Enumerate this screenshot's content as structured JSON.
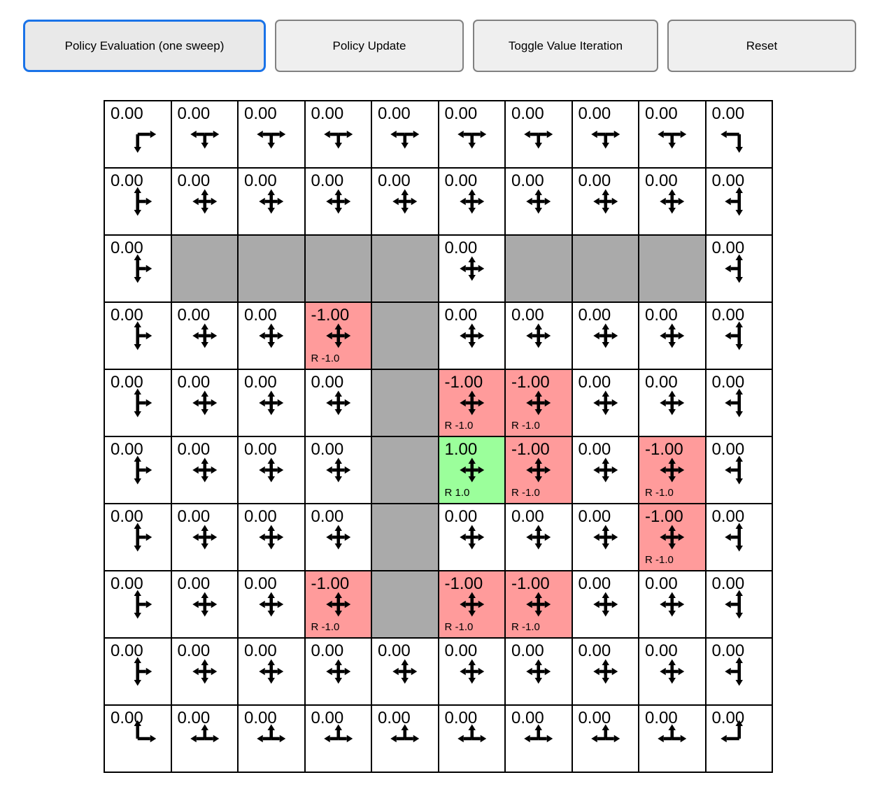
{
  "toolbar": {
    "buttons": [
      {
        "label": "Policy Evaluation (one sweep)",
        "focused": true
      },
      {
        "label": "Policy Update",
        "focused": false
      },
      {
        "label": "Toggle Value Iteration",
        "focused": false
      },
      {
        "label": "Reset",
        "focused": false
      }
    ]
  },
  "colors": {
    "focus_ring": "#1a73e8",
    "button_bg": "#efefef",
    "button_border": "#818181",
    "wall": "#aaaaaa",
    "negative_cell": "#ff9b9b",
    "positive_cell": "#9bff9b",
    "grid_line": "#000000"
  },
  "grid": {
    "rows": 10,
    "cols": 10,
    "cells": [
      [
        {
          "v": "0.00",
          "d": "DR"
        },
        {
          "v": "0.00",
          "d": "LRD"
        },
        {
          "v": "0.00",
          "d": "LRD"
        },
        {
          "v": "0.00",
          "d": "LRD"
        },
        {
          "v": "0.00",
          "d": "LRD"
        },
        {
          "v": "0.00",
          "d": "LRD"
        },
        {
          "v": "0.00",
          "d": "LRD"
        },
        {
          "v": "0.00",
          "d": "LRD"
        },
        {
          "v": "0.00",
          "d": "LRD"
        },
        {
          "v": "0.00",
          "d": "LD"
        }
      ],
      [
        {
          "v": "0.00",
          "d": "UDR"
        },
        {
          "v": "0.00",
          "d": "UDLR"
        },
        {
          "v": "0.00",
          "d": "UDLR"
        },
        {
          "v": "0.00",
          "d": "UDLR"
        },
        {
          "v": "0.00",
          "d": "UDLR"
        },
        {
          "v": "0.00",
          "d": "UDLR"
        },
        {
          "v": "0.00",
          "d": "UDLR"
        },
        {
          "v": "0.00",
          "d": "UDLR"
        },
        {
          "v": "0.00",
          "d": "UDLR"
        },
        {
          "v": "0.00",
          "d": "UDL"
        }
      ],
      [
        {
          "v": "0.00",
          "d": "UDR"
        },
        {
          "wall": true
        },
        {
          "wall": true
        },
        {
          "wall": true
        },
        {
          "wall": true
        },
        {
          "v": "0.00",
          "d": "UDLR"
        },
        {
          "wall": true
        },
        {
          "wall": true
        },
        {
          "wall": true
        },
        {
          "v": "0.00",
          "d": "UDL"
        }
      ],
      [
        {
          "v": "0.00",
          "d": "UDR"
        },
        {
          "v": "0.00",
          "d": "UDLR"
        },
        {
          "v": "0.00",
          "d": "UDLR"
        },
        {
          "v": "-1.00",
          "d": "UDLR",
          "bg": "red",
          "r": "R -1.0"
        },
        {
          "wall": true
        },
        {
          "v": "0.00",
          "d": "UDLR"
        },
        {
          "v": "0.00",
          "d": "UDLR"
        },
        {
          "v": "0.00",
          "d": "UDLR"
        },
        {
          "v": "0.00",
          "d": "UDLR"
        },
        {
          "v": "0.00",
          "d": "UDL"
        }
      ],
      [
        {
          "v": "0.00",
          "d": "UDR"
        },
        {
          "v": "0.00",
          "d": "UDLR"
        },
        {
          "v": "0.00",
          "d": "UDLR"
        },
        {
          "v": "0.00",
          "d": "UDLR"
        },
        {
          "wall": true
        },
        {
          "v": "-1.00",
          "d": "UDLR",
          "bg": "red",
          "r": "R -1.0"
        },
        {
          "v": "-1.00",
          "d": "UDLR",
          "bg": "red",
          "r": "R -1.0"
        },
        {
          "v": "0.00",
          "d": "UDLR"
        },
        {
          "v": "0.00",
          "d": "UDLR"
        },
        {
          "v": "0.00",
          "d": "UDL"
        }
      ],
      [
        {
          "v": "0.00",
          "d": "UDR"
        },
        {
          "v": "0.00",
          "d": "UDLR"
        },
        {
          "v": "0.00",
          "d": "UDLR"
        },
        {
          "v": "0.00",
          "d": "UDLR"
        },
        {
          "wall": true
        },
        {
          "v": "1.00",
          "d": "UDLR",
          "bg": "green",
          "r": "R 1.0"
        },
        {
          "v": "-1.00",
          "d": "UDLR",
          "bg": "red",
          "r": "R -1.0"
        },
        {
          "v": "0.00",
          "d": "UDLR"
        },
        {
          "v": "-1.00",
          "d": "UDLR",
          "bg": "red",
          "r": "R -1.0"
        },
        {
          "v": "0.00",
          "d": "UDL"
        }
      ],
      [
        {
          "v": "0.00",
          "d": "UDR"
        },
        {
          "v": "0.00",
          "d": "UDLR"
        },
        {
          "v": "0.00",
          "d": "UDLR"
        },
        {
          "v": "0.00",
          "d": "UDLR"
        },
        {
          "wall": true
        },
        {
          "v": "0.00",
          "d": "UDLR"
        },
        {
          "v": "0.00",
          "d": "UDLR"
        },
        {
          "v": "0.00",
          "d": "UDLR"
        },
        {
          "v": "-1.00",
          "d": "UDLR",
          "bg": "red",
          "r": "R -1.0"
        },
        {
          "v": "0.00",
          "d": "UDL"
        }
      ],
      [
        {
          "v": "0.00",
          "d": "UDR"
        },
        {
          "v": "0.00",
          "d": "UDLR"
        },
        {
          "v": "0.00",
          "d": "UDLR"
        },
        {
          "v": "-1.00",
          "d": "UDLR",
          "bg": "red",
          "r": "R -1.0"
        },
        {
          "wall": true
        },
        {
          "v": "-1.00",
          "d": "UDLR",
          "bg": "red",
          "r": "R -1.0"
        },
        {
          "v": "-1.00",
          "d": "UDLR",
          "bg": "red",
          "r": "R -1.0"
        },
        {
          "v": "0.00",
          "d": "UDLR"
        },
        {
          "v": "0.00",
          "d": "UDLR"
        },
        {
          "v": "0.00",
          "d": "UDL"
        }
      ],
      [
        {
          "v": "0.00",
          "d": "UDR"
        },
        {
          "v": "0.00",
          "d": "UDLR"
        },
        {
          "v": "0.00",
          "d": "UDLR"
        },
        {
          "v": "0.00",
          "d": "UDLR"
        },
        {
          "v": "0.00",
          "d": "UDLR"
        },
        {
          "v": "0.00",
          "d": "UDLR"
        },
        {
          "v": "0.00",
          "d": "UDLR"
        },
        {
          "v": "0.00",
          "d": "UDLR"
        },
        {
          "v": "0.00",
          "d": "UDLR"
        },
        {
          "v": "0.00",
          "d": "UDL"
        }
      ],
      [
        {
          "v": "0.00",
          "d": "UR"
        },
        {
          "v": "0.00",
          "d": "LRU"
        },
        {
          "v": "0.00",
          "d": "LRU"
        },
        {
          "v": "0.00",
          "d": "LRU"
        },
        {
          "v": "0.00",
          "d": "LRU"
        },
        {
          "v": "0.00",
          "d": "LRU"
        },
        {
          "v": "0.00",
          "d": "LRU"
        },
        {
          "v": "0.00",
          "d": "LRU"
        },
        {
          "v": "0.00",
          "d": "LRU"
        },
        {
          "v": "0.00",
          "d": "UL"
        }
      ]
    ]
  }
}
